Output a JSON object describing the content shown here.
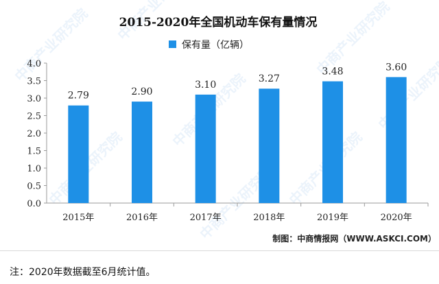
{
  "chart_data": {
    "type": "bar",
    "title": "2015-2020年全国机动车保有量情况",
    "categories": [
      "2015年",
      "2016年",
      "2017年",
      "2018年",
      "2019年",
      "2020年"
    ],
    "series": [
      {
        "name": "保有量（亿辆）",
        "values": [
          2.79,
          2.9,
          3.1,
          3.27,
          3.48,
          3.6
        ]
      }
    ],
    "data_labels": [
      "2.79",
      "2.90",
      "3.10",
      "3.27",
      "3.48",
      "3.60"
    ],
    "yticks": [
      "0.0",
      "0.5",
      "1.0",
      "1.5",
      "2.0",
      "2.5",
      "3.0",
      "3.5",
      "4.0"
    ],
    "ylim": [
      0,
      4.0
    ],
    "ystep": 0.5,
    "xlabel": "",
    "ylabel": "",
    "grid": false,
    "legend_position": "top"
  },
  "colors": {
    "bar": "#1e90e6",
    "axis": "#999999"
  },
  "watermark": "中商产业研究院",
  "source": "制图：中商情报网（WWW.ASKCI.COM）",
  "note": "注：2020年数据截至6月统计值。"
}
